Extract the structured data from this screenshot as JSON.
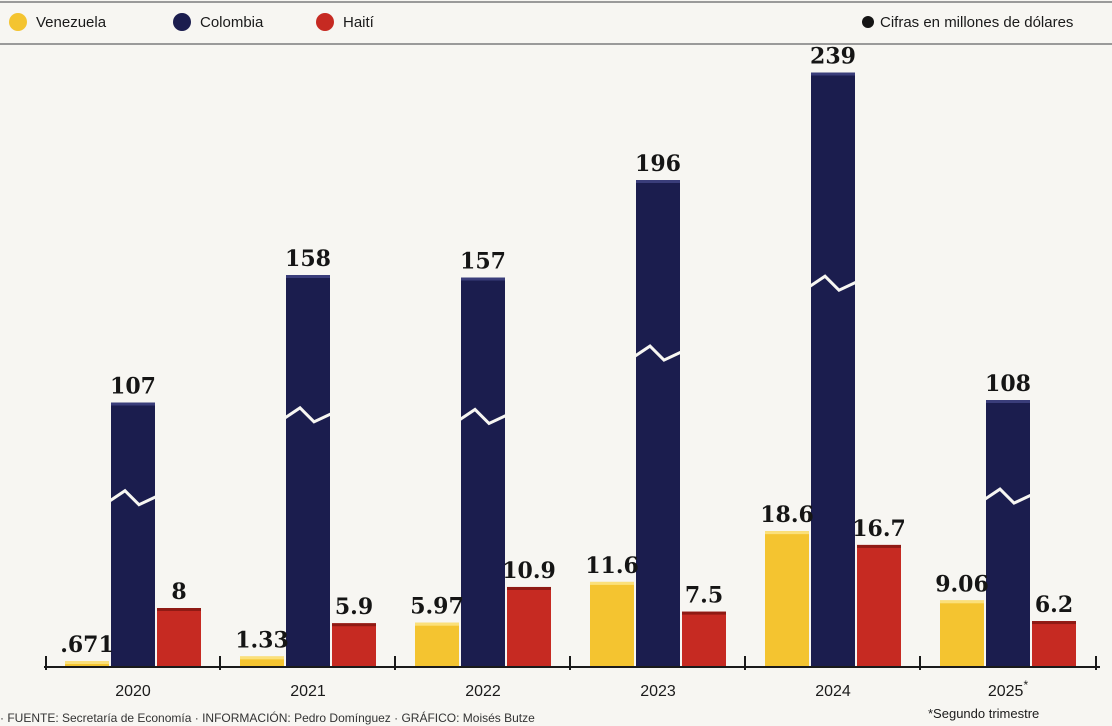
{
  "legend": {
    "items": [
      {
        "label": "Venezuela",
        "color": "#f4c430"
      },
      {
        "label": "Colombia",
        "color": "#1b1d4e"
      },
      {
        "label": "Haití",
        "color": "#c62a22"
      }
    ],
    "note": "Cifras en millones de dólares"
  },
  "footnote": {
    "mark": "*",
    "text": "*Segundo trimestre"
  },
  "source_text": "· FUENTE: Secretaría de Economía · INFORMACIÓN: Pedro Domínguez · GRÁFICO: Moisés Butze",
  "chart_data": {
    "type": "bar",
    "categories": [
      "2020",
      "2021",
      "2022",
      "2023",
      "2024",
      "2025"
    ],
    "category_notes": [
      "",
      "",
      "",
      "",
      "",
      "*"
    ],
    "series": [
      {
        "name": "Venezuela",
        "color": "#f4c430",
        "values": [
          0.671,
          1.33,
          5.97,
          11.6,
          18.6,
          9.06
        ],
        "labels": [
          ".671",
          "1.33",
          "5.97",
          "11.6",
          "18.6",
          "9.06"
        ]
      },
      {
        "name": "Colombia",
        "color": "#1b1d4e",
        "values": [
          107,
          158,
          157,
          196,
          239,
          108
        ],
        "labels": [
          "107",
          "158",
          "157",
          "196",
          "239",
          "108"
        ]
      },
      {
        "name": "Haití",
        "color": "#c62a22",
        "values": [
          8,
          5.9,
          10.9,
          7.5,
          16.7,
          6.2
        ],
        "labels": [
          "8",
          "5.9",
          "10.9",
          "7.5",
          "16.7",
          "6.2"
        ]
      }
    ],
    "axis_break": "Colombia bars drawn with a scale break",
    "unit": "millones de dólares",
    "grid": false,
    "legend_position": "top"
  }
}
